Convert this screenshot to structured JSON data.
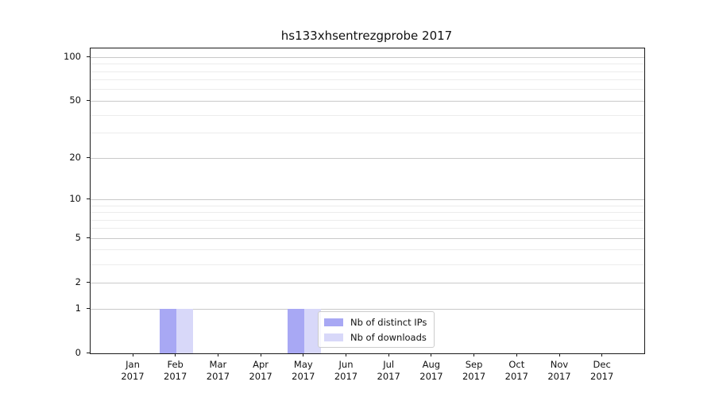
{
  "chart_data": {
    "type": "bar",
    "title": "hs133xhsentrezgprobe 2017",
    "categories": [
      "Jan",
      "Feb",
      "Mar",
      "Apr",
      "May",
      "Jun",
      "Jul",
      "Aug",
      "Sep",
      "Oct",
      "Nov",
      "Dec"
    ],
    "category_year": "2017",
    "series": [
      {
        "name": "Nb of distinct IPs",
        "color": "#a8a8f4",
        "values": [
          0,
          1,
          0,
          0,
          1,
          0,
          0,
          0,
          0,
          0,
          0,
          0
        ]
      },
      {
        "name": "Nb of downloads",
        "color": "#d8d8f9",
        "values": [
          0,
          1,
          0,
          0,
          1,
          0,
          0,
          0,
          0,
          0,
          0,
          0
        ]
      }
    ],
    "y_axis": {
      "scale": "log1p",
      "major_ticks": [
        0,
        1,
        2,
        5,
        10,
        20,
        50,
        100
      ],
      "minor_ticks": [
        3,
        4,
        6,
        7,
        8,
        9,
        30,
        40,
        60,
        70,
        80,
        90
      ],
      "ylim": [
        0,
        115
      ]
    },
    "x_axis": {
      "tick_label_lines": 2
    },
    "legend": {
      "position": "lower center-left",
      "entries": [
        "Nb of distinct IPs",
        "Nb of downloads"
      ]
    },
    "grid": true,
    "colors": {
      "major_grid": "#c9c9c9",
      "minor_grid": "#ececec",
      "frame": "#1a1a1a",
      "background": "#ffffff"
    }
  }
}
